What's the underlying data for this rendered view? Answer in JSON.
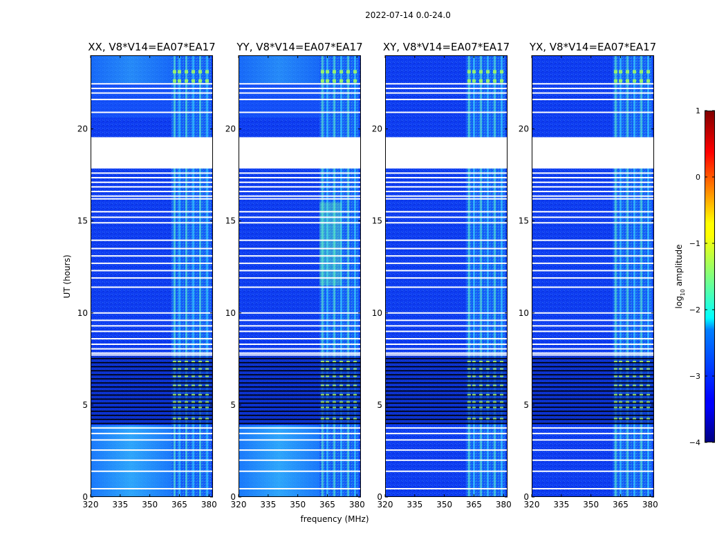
{
  "chart_data": {
    "type": "heatmap",
    "suptitle": "2022-07-14 0.0-24.0",
    "xlabel": "frequency (MHz)",
    "ylabel": "UT (hours)",
    "x_range_mhz": [
      320,
      382
    ],
    "y_range_hours": [
      0,
      24
    ],
    "x_ticks": [
      320,
      335,
      350,
      365,
      380
    ],
    "y_ticks": [
      0,
      5,
      10,
      15,
      20
    ],
    "panels": [
      {
        "title": "XX, V8*V14=EA07*EA17",
        "pol": "XX",
        "rfi_band_mhz": [
          361,
          381
        ],
        "bright_low_hours": true
      },
      {
        "title": "YY, V8*V14=EA07*EA17",
        "pol": "YY",
        "rfi_band_mhz": [
          361,
          381
        ],
        "bright_low_hours": true
      },
      {
        "title": "XY, V8*V14=EA07*EA17",
        "pol": "XY",
        "rfi_band_mhz": [
          361,
          381
        ],
        "bright_low_hours": false
      },
      {
        "title": "YX, V8*V14=EA07*EA17",
        "pol": "YX",
        "rfi_band_mhz": [
          361,
          381
        ],
        "bright_low_hours": false
      }
    ],
    "flagged_gap_hours": [
      [
        17.85,
        19.55
      ]
    ],
    "flagged_lines_hours": [
      0.45,
      1.4,
      2.0,
      2.55,
      3.1,
      3.45,
      3.75,
      7.72,
      7.82,
      8.05,
      8.3,
      8.6,
      9.0,
      9.3,
      9.6,
      10.0,
      11.4,
      11.9,
      12.3,
      12.7,
      13.1,
      13.5,
      13.95,
      14.9,
      15.2,
      15.5,
      16.2,
      16.35,
      16.6,
      16.85,
      17.1,
      17.35,
      17.6,
      20.9,
      21.6,
      21.95,
      22.2,
      22.45
    ],
    "dark_band_hours": [
      3.95,
      7.65
    ],
    "colorbar": {
      "label": "log10 amplitude",
      "label_main": "log",
      "label_sub": "10",
      "label_rest": " amplitude",
      "range": [
        -4,
        1
      ],
      "ticks": [
        1,
        0,
        -1,
        -2,
        -3,
        -4
      ],
      "tick_labels": [
        "1",
        "0",
        "−1",
        "−2",
        "−3",
        "−4"
      ],
      "colormap": "jet"
    }
  }
}
